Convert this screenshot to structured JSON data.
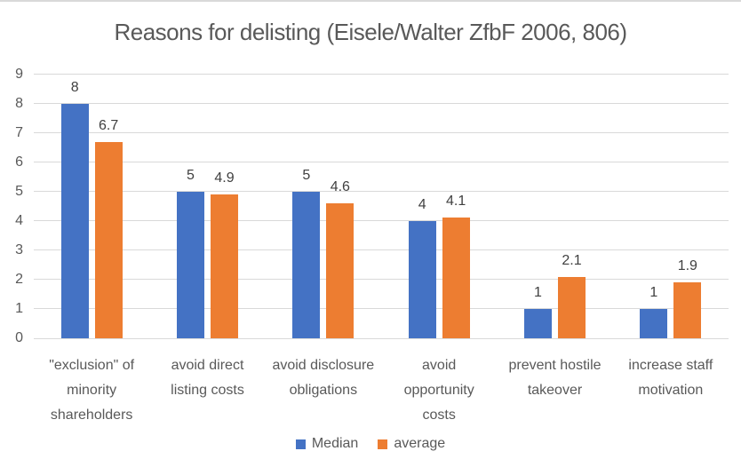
{
  "chart_data": {
    "type": "bar",
    "title": "Reasons for delisting (Eisele/Walter ZfbF 2006, 806)",
    "xlabel": "",
    "ylabel": "",
    "categories": [
      "\"exclusion\" of\nminority\nshareholders",
      "avoid direct\nlisting costs",
      "avoid disclosure\nobligations",
      "avoid\nopportunity\ncosts",
      "prevent hostile\ntakeover",
      "increase staff\nmotivation"
    ],
    "series": [
      {
        "name": "Median",
        "color": "#4472C4",
        "values": [
          8,
          5,
          5,
          4,
          1,
          1
        ],
        "labels": [
          "8",
          "5",
          "5",
          "4",
          "1",
          "1"
        ]
      },
      {
        "name": "average",
        "color": "#ED7D31",
        "values": [
          6.7,
          4.9,
          4.6,
          4.1,
          2.1,
          1.9
        ],
        "labels": [
          "6.7",
          "4.9",
          "4.6",
          "4.1",
          "2.1",
          "1.9"
        ]
      }
    ],
    "ylim": [
      0,
      9
    ],
    "ytick_step": 1,
    "yticks": [
      "0",
      "1",
      "2",
      "3",
      "4",
      "5",
      "6",
      "7",
      "8",
      "9"
    ],
    "grid": true,
    "legend_position": "bottom",
    "colors": {
      "gridline": "#D9D9D9",
      "axis_text": "#595959",
      "category_text": "#595959",
      "data_label_text": "#404040",
      "title_text": "#595959",
      "legend_text": "#595959",
      "background": "#FFFFFF"
    }
  }
}
